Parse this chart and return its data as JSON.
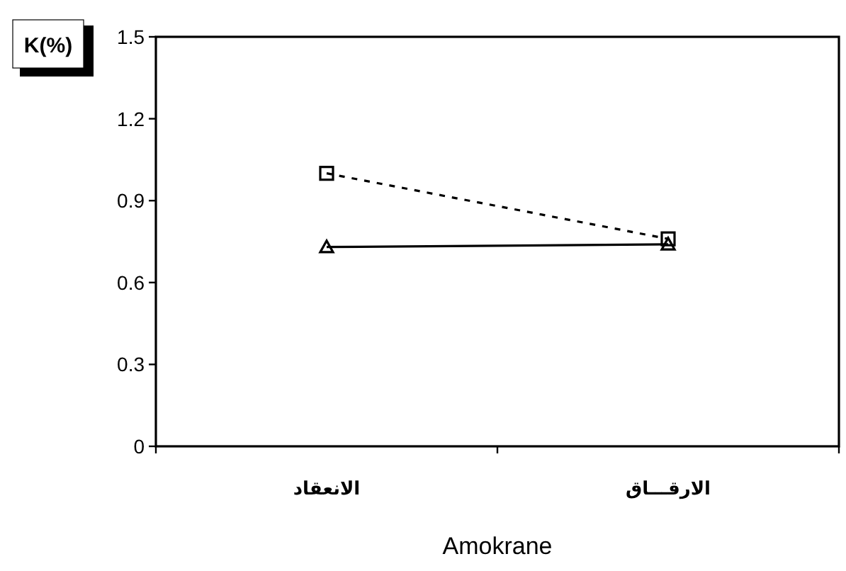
{
  "chart_data": {
    "type": "line",
    "ylabel": "K(%)",
    "xlabel": "Amokrane",
    "categories": [
      "الانعقاد",
      "الارقـــاق"
    ],
    "series": [
      {
        "color": "#000000",
        "values": [
          1.0,
          0.76
        ],
        "marker": "square",
        "line_style": "dashed"
      },
      {
        "color": "#000000",
        "values": [
          0.73,
          0.74
        ],
        "marker": "triangle",
        "line_style": "solid"
      }
    ],
    "ylim": [
      0,
      1.5
    ],
    "yticks": [
      0,
      0.3,
      0.6,
      0.9,
      1.2,
      1.5
    ],
    "grid": false
  }
}
